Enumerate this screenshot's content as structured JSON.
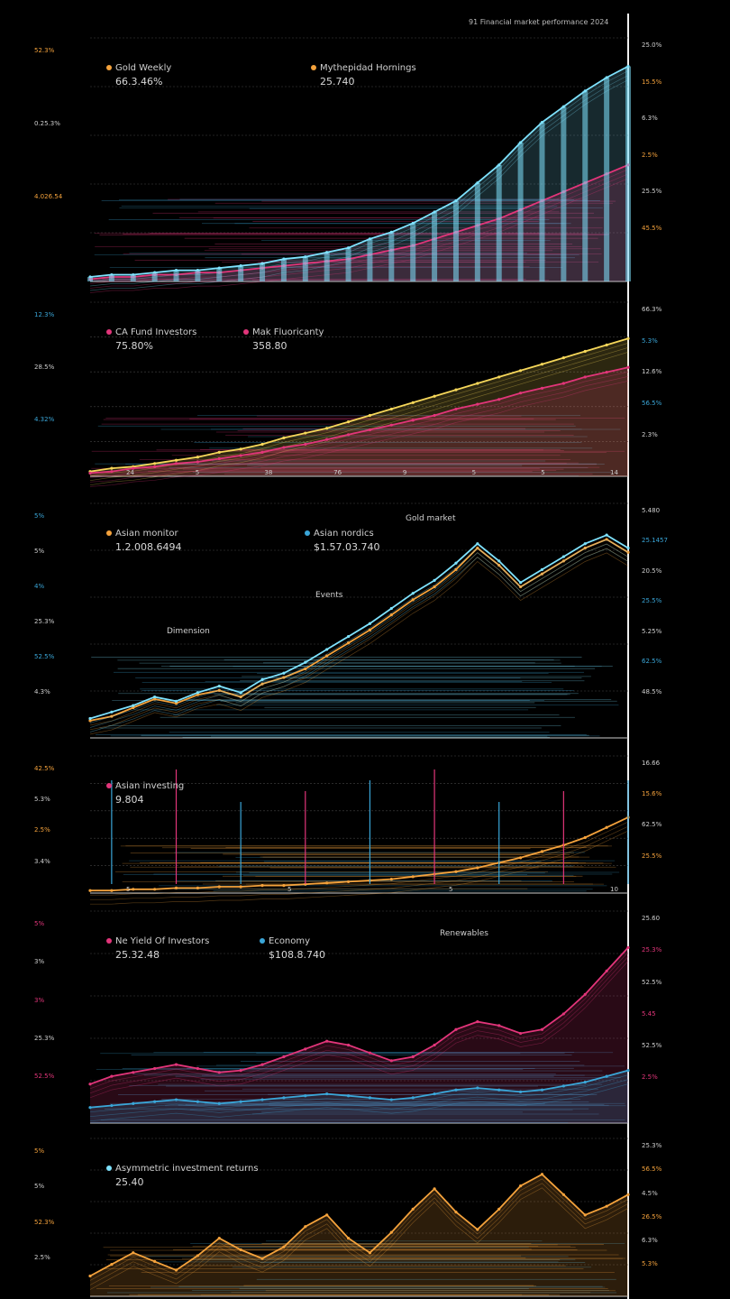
{
  "header": {
    "title": "91 Financial market performance 2024"
  },
  "colors": {
    "bg": "#000000",
    "cyan": "#7fe3ff",
    "blue": "#3aa6d8",
    "orange": "#f4a23c",
    "pink": "#e2357a",
    "yellow": "#f6d75a",
    "white": "#e8e8e8"
  },
  "panels": [
    {
      "legend": [
        {
          "label": "Gold Weekly",
          "value": "66.3.46%",
          "color": "#f4a23c"
        },
        {
          "label": "Mythepidad Hornings",
          "value": "25.740",
          "color": "#f4a23c"
        }
      ],
      "left_labels": [
        "52.3%",
        "0.25.3%",
        "4.026.54"
      ],
      "right_labels": [
        "25.0%",
        "15.5%",
        "6.3%",
        "2.5%",
        "25.5%",
        "45.5%"
      ],
      "tick_labels": [],
      "annotations": []
    },
    {
      "legend": [
        {
          "label": "CA Fund Investors",
          "value": "75.80%",
          "color": "#e2357a"
        },
        {
          "label": "Mak Fluoricanty",
          "value": "358.80",
          "color": "#e2357a"
        }
      ],
      "left_labels": [
        "12.3%",
        "28.5%",
        "4.32%"
      ],
      "right_labels": [
        "66.3%",
        "5.3%",
        "12.6%",
        "56.5%",
        "2.3%"
      ],
      "tick_labels": [
        "24",
        "5",
        "38",
        "76",
        "9",
        "5",
        "5",
        "14"
      ],
      "annotations": []
    },
    {
      "legend": [
        {
          "label": "Asian monitor",
          "value": "1.2.008.6494",
          "color": "#f4a23c"
        },
        {
          "label": "Asian nordics",
          "value": "$1.57.03.740",
          "color": "#3aa6d8"
        }
      ],
      "left_labels": [
        "5%",
        "5%",
        "4%",
        "25.3%",
        "52.5%",
        "4.3%"
      ],
      "right_labels": [
        "5.480",
        "25.1457",
        "20.5%",
        "25.5%",
        "5.25%",
        "62.5%",
        "48.5%"
      ],
      "tick_labels": [],
      "annotations": [
        "Gold market",
        "Events",
        "Dimension"
      ]
    },
    {
      "legend": [
        {
          "label": "Asian investing",
          "value": "9.804",
          "color": "#e2357a"
        }
      ],
      "left_labels": [
        "42.5%",
        "5.3%",
        "2.5%",
        "3.4%"
      ],
      "right_labels": [
        "16.66",
        "15.6%",
        "62.5%",
        "25.5%"
      ],
      "tick_labels": [
        "5",
        "5",
        "5",
        "10"
      ],
      "annotations": []
    },
    {
      "legend": [
        {
          "label": "Ne Yield Of Investors",
          "value": "25.32.48",
          "color": "#e2357a"
        },
        {
          "label": "Economy",
          "value": "$108.8.740",
          "color": "#3aa6d8"
        }
      ],
      "left_labels": [
        "5%",
        "3%",
        "3%",
        "25.3%",
        "52.5%"
      ],
      "right_labels": [
        "25.60",
        "25.3%",
        "52.5%",
        "5.45",
        "52.5%",
        "2.5%"
      ],
      "tick_labels": [],
      "annotations": [
        "Renewables"
      ]
    },
    {
      "legend": [
        {
          "label": "Asymmetric investment returns",
          "value": "25.40",
          "color": "#7fe3ff"
        }
      ],
      "left_labels": [
        "5%",
        "5%",
        "52.3%",
        "2.5%"
      ],
      "right_labels": [
        "25.3%",
        "56.5%",
        "4.5%",
        "26.5%",
        "6.3%",
        "5.3%"
      ],
      "tick_labels": [],
      "annotations": []
    }
  ],
  "chart_data": [
    {
      "type": "area",
      "title": "",
      "series": [
        {
          "name": "Gold Weekly",
          "color": "#7fe3ff",
          "values": [
            2,
            3,
            3,
            4,
            5,
            5,
            6,
            7,
            8,
            10,
            11,
            13,
            15,
            19,
            22,
            26,
            31,
            36,
            44,
            52,
            62,
            71,
            78,
            85,
            91,
            96
          ]
        },
        {
          "name": "Mythepidad Hornings",
          "color": "#e2357a",
          "values": [
            1,
            2,
            2,
            3,
            3,
            4,
            4,
            5,
            6,
            7,
            8,
            9,
            10,
            12,
            14,
            16,
            19,
            22,
            25,
            28,
            32,
            36,
            40,
            44,
            48,
            52
          ]
        }
      ]
    },
    {
      "type": "area",
      "title": "",
      "series": [
        {
          "name": "CA Fund Investors",
          "color": "#f6d75a",
          "values": [
            3,
            5,
            6,
            8,
            10,
            12,
            15,
            17,
            20,
            24,
            27,
            30,
            34,
            38,
            42,
            46,
            50,
            54,
            58,
            62,
            66,
            70,
            74,
            78,
            82,
            86
          ]
        },
        {
          "name": "Mak Fluoricanty",
          "color": "#e2357a",
          "values": [
            2,
            3,
            5,
            6,
            8,
            9,
            11,
            13,
            15,
            18,
            20,
            23,
            26,
            29,
            32,
            35,
            38,
            42,
            45,
            48,
            52,
            55,
            58,
            62,
            65,
            68
          ]
        }
      ]
    },
    {
      "type": "line",
      "title": "",
      "series": [
        {
          "name": "Asian monitor",
          "color": "#f4a23c",
          "values": [
            8,
            10,
            14,
            18,
            16,
            20,
            22,
            19,
            25,
            28,
            32,
            38,
            44,
            50,
            57,
            64,
            70,
            78,
            88,
            80,
            70,
            76,
            82,
            88,
            92,
            86
          ]
        },
        {
          "name": "Asian nordics",
          "color": "#7fe3ff",
          "values": [
            9,
            12,
            15,
            19,
            17,
            21,
            24,
            21,
            27,
            30,
            35,
            41,
            47,
            53,
            60,
            67,
            73,
            81,
            90,
            82,
            72,
            78,
            84,
            90,
            94,
            88
          ]
        }
      ]
    },
    {
      "type": "line",
      "title": "",
      "series": [
        {
          "name": "Asian investing",
          "color": "#f4a23c",
          "values": [
            2,
            2,
            3,
            3,
            4,
            4,
            5,
            5,
            6,
            6,
            7,
            8,
            9,
            10,
            11,
            13,
            15,
            17,
            20,
            24,
            28,
            33,
            38,
            44,
            52,
            60
          ]
        }
      ]
    },
    {
      "type": "area",
      "title": "",
      "series": [
        {
          "name": "Ne Yield Of Investors",
          "color": "#e2357a",
          "values": [
            20,
            24,
            26,
            28,
            30,
            28,
            26,
            27,
            30,
            34,
            38,
            42,
            40,
            36,
            32,
            34,
            40,
            48,
            52,
            50,
            46,
            48,
            56,
            66,
            78,
            90
          ]
        },
        {
          "name": "Economy",
          "color": "#3aa6d8",
          "values": [
            8,
            9,
            10,
            11,
            12,
            11,
            10,
            11,
            12,
            13,
            14,
            15,
            14,
            13,
            12,
            13,
            15,
            17,
            18,
            17,
            16,
            17,
            19,
            21,
            24,
            27
          ]
        }
      ]
    },
    {
      "type": "area",
      "title": "",
      "series": [
        {
          "name": "Asymmetric investment returns",
          "color": "#f4a23c",
          "values": [
            14,
            22,
            30,
            24,
            18,
            28,
            40,
            32,
            26,
            34,
            48,
            56,
            40,
            30,
            44,
            60,
            74,
            58,
            46,
            60,
            76,
            84,
            70,
            56,
            62,
            70
          ]
        }
      ]
    }
  ]
}
